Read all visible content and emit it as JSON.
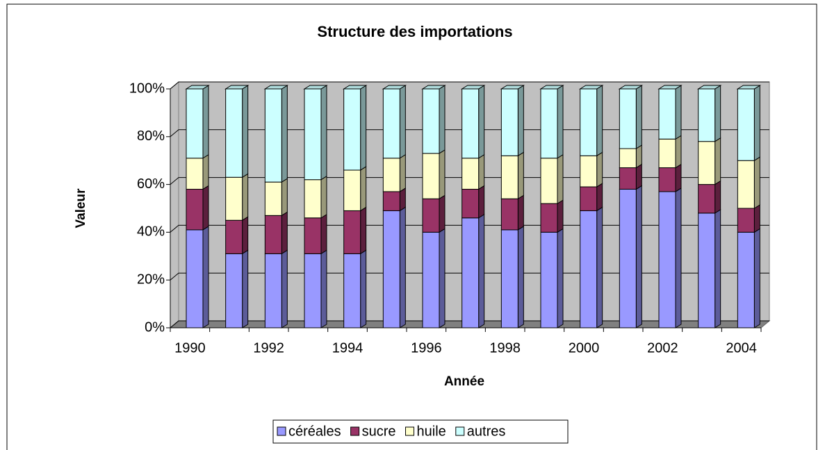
{
  "chart_data": {
    "type": "stacked_bar_3d",
    "title": "Structure des importations",
    "x_label": "Année",
    "y_label": "Valeur",
    "categories": [
      "1990",
      null,
      "1992",
      null,
      "1994",
      null,
      "1996",
      null,
      "1998",
      null,
      "2000",
      null,
      "2002",
      null,
      "2004"
    ],
    "series": [
      {
        "name": "céréales",
        "color": "#9999ff",
        "values": [
          41,
          31,
          31,
          31,
          31,
          49,
          40,
          46,
          41,
          40,
          49,
          58,
          57,
          48,
          40
        ]
      },
      {
        "name": "sucre",
        "color": "#993366",
        "values": [
          17,
          14,
          16,
          15,
          18,
          8,
          14,
          12,
          13,
          12,
          10,
          9,
          10,
          12,
          10
        ]
      },
      {
        "name": "huile",
        "color": "#ffffcc",
        "values": [
          13,
          18,
          14,
          16,
          17,
          14,
          19,
          13,
          18,
          19,
          13,
          8,
          12,
          18,
          20
        ]
      },
      {
        "name": "autres",
        "color": "#ccffff",
        "values": [
          29,
          37,
          39,
          38,
          34,
          29,
          27,
          29,
          28,
          29,
          28,
          25,
          21,
          22,
          30
        ]
      }
    ],
    "ylim": [
      0,
      100
    ],
    "yticks": [
      {
        "value": 0,
        "label": "0%"
      },
      {
        "value": 20,
        "label": "20%"
      },
      {
        "value": 40,
        "label": "40%"
      },
      {
        "value": 60,
        "label": "60%"
      },
      {
        "value": 80,
        "label": "80%"
      },
      {
        "value": 100,
        "label": "100%"
      }
    ],
    "grid": true,
    "legend": "bottom"
  }
}
